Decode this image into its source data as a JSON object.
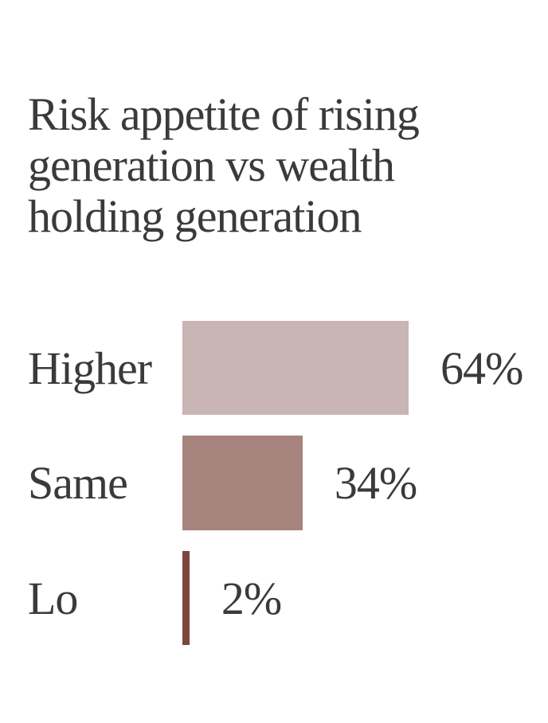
{
  "page": {
    "background_color": "#ffffff",
    "text_color": "#3a3a3c"
  },
  "chart": {
    "title": "Risk appetite of rising generation vs wealth holding generation"
  },
  "chart_data": {
    "type": "bar",
    "orientation": "horizontal",
    "title": "Risk appetite of rising generation vs wealth holding generation",
    "categories": [
      "Higher",
      "Same",
      "Lo"
    ],
    "values": [
      64,
      34,
      2
    ],
    "value_labels": [
      "64%",
      "34%",
      "2%"
    ],
    "bar_colors": [
      "#c9b5b3",
      "#a7837e",
      "#7e463f"
    ],
    "xlabel": "",
    "ylabel": "",
    "xlim": [
      0,
      100
    ],
    "grid": false,
    "legend": false,
    "value_label_position": "right-of-bar",
    "category_label_position": "left-of-bar"
  }
}
